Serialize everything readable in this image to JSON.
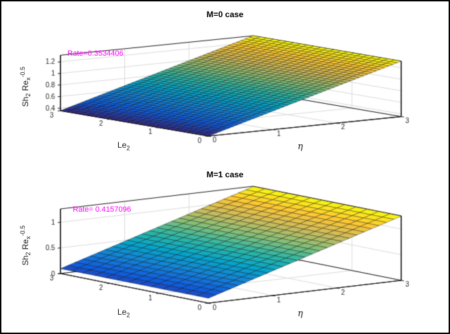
{
  "figure": {
    "background": "#ffffff",
    "border_color": "#000000"
  },
  "colors": {
    "annotation": "#ff00ff",
    "box": "#151515",
    "grid": "#d9d9d9",
    "tick_label": "#262626",
    "title": "#000000",
    "colormap": [
      "#352a87",
      "#0f5cdd",
      "#1481d6",
      "#06a4ca",
      "#2eb7a4",
      "#87bf77",
      "#d1bb59",
      "#fec832",
      "#f9fb0e"
    ]
  },
  "chart_data": [
    {
      "type": "surface",
      "title": "M=0 case",
      "annotation": "Rate=0.3534406",
      "xlabel": "η",
      "ylabel": {
        "base": "Le",
        "sub": "2"
      },
      "zlabel": {
        "p1": "Sh",
        "p1_sub": "2",
        "p2": " Re",
        "p2_sub": "x",
        "p2_sup": "-0.5"
      },
      "x_range": [
        0,
        3
      ],
      "y_range": [
        0,
        3
      ],
      "zlim": [
        0.3534406,
        1.3137625
      ],
      "x_ticks": [
        0,
        1,
        2,
        3
      ],
      "y_ticks": [
        0,
        1,
        2,
        3
      ],
      "z_ticks": [
        0.4,
        0.6,
        0.8,
        1,
        1.2
      ],
      "view": {
        "azimuth": -37.5,
        "elevation": 30
      },
      "surface": {
        "model": "plane",
        "z0": 0.3534406,
        "slope_eta": 0.3201073,
        "slope_le2": 0,
        "mesh_nx": 46,
        "mesh_ny": 22
      },
      "z_profile": {
        "eta": [
          0,
          1,
          2,
          3
        ],
        "z": [
          0.3534406,
          0.6735479,
          0.9936552,
          1.3137625
        ]
      }
    },
    {
      "type": "surface",
      "title": "M=1 case",
      "annotation": "Rate= 0.4157096",
      "xlabel": "η",
      "ylabel": {
        "base": "Le",
        "sub": "2"
      },
      "zlabel": {
        "p1": "Sh",
        "p1_sub": "2",
        "p2": " Re",
        "p2_sub": "x",
        "p2_sup": "-0.5"
      },
      "x_range": [
        0,
        3
      ],
      "y_range": [
        0,
        3
      ],
      "zlim": [
        0,
        1.26
      ],
      "x_ticks": [
        0,
        1,
        2,
        3
      ],
      "y_ticks": [
        0,
        1,
        2,
        3
      ],
      "z_ticks": [
        0,
        0.5,
        1
      ],
      "view": {
        "azimuth": -37.5,
        "elevation": 30
      },
      "surface": {
        "model": "plane",
        "z0": 0.095,
        "slope_eta": 0.3863,
        "slope_le2": 0,
        "mesh_nx": 26,
        "mesh_ny": 13
      },
      "z_profile": {
        "eta": [
          0,
          1,
          2,
          3
        ],
        "z": [
          0.095,
          0.4813,
          0.8676,
          1.2539
        ]
      }
    }
  ]
}
